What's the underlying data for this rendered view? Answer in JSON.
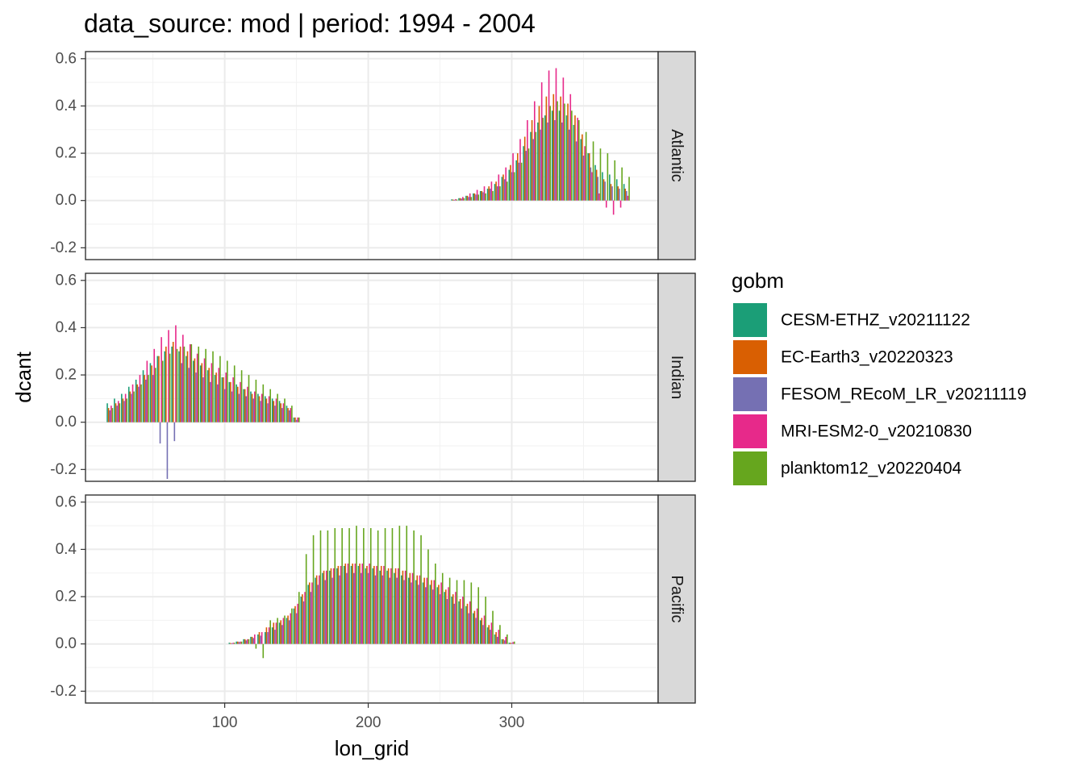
{
  "chart_data": {
    "type": "bar",
    "title": "data_source: mod | period: 1994 - 2004",
    "xlabel": "lon_grid",
    "ylabel": "dcant",
    "xlim": [
      3,
      402
    ],
    "ylim": [
      -0.25,
      0.63
    ],
    "x_ticks": [
      100,
      200,
      300
    ],
    "x_tick_labels": [
      "100",
      "200",
      "300"
    ],
    "y_ticks": [
      -0.2,
      0.0,
      0.2,
      0.4,
      0.6
    ],
    "y_tick_labels": [
      "-0.2",
      "0.0",
      "0.2",
      "0.4",
      "0.6"
    ],
    "grid": true,
    "legend_position": "right",
    "legend": {
      "title": "gobm",
      "entries": [
        {
          "label": "CESM-ETHZ_v20211122",
          "color": "#1b9e77"
        },
        {
          "label": "EC-Earth3_v20220323",
          "color": "#d95f02"
        },
        {
          "label": "FESOM_REcoM_LR_v20211119",
          "color": "#7570b3"
        },
        {
          "label": "MRI-ESM2-0_v20210830",
          "color": "#e7298a"
        },
        {
          "label": "planktom12_v20220404",
          "color": "#66a61e"
        }
      ]
    },
    "panels": [
      {
        "label": "Atlantic",
        "x": [
          260,
          265,
          270,
          275,
          280,
          285,
          290,
          295,
          300,
          305,
          310,
          315,
          320,
          325,
          330,
          335,
          340,
          345,
          350,
          355,
          360,
          365,
          370,
          375,
          380
        ],
        "series": [
          {
            "name": "CESM-ETHZ_v20211122",
            "values": [
              0.005,
              0.01,
              0.02,
              0.03,
              0.04,
              0.05,
              0.07,
              0.1,
              0.13,
              0.17,
              0.23,
              0.29,
              0.33,
              0.36,
              0.38,
              0.38,
              0.36,
              0.32,
              0.26,
              0.2,
              0.15,
              0.12,
              0.11,
              0.09,
              0.07
            ]
          },
          {
            "name": "EC-Earth3_v20220323",
            "values": [
              0.004,
              0.01,
              0.02,
              0.03,
              0.04,
              0.06,
              0.08,
              0.11,
              0.15,
              0.2,
              0.27,
              0.34,
              0.4,
              0.44,
              0.45,
              0.44,
              0.41,
              0.36,
              0.28,
              0.2,
              0.13,
              0.09,
              0.07,
              0.06,
              0.05
            ]
          },
          {
            "name": "FESOM_REcoM_LR_v20211119",
            "values": [
              0.003,
              0.008,
              0.015,
              0.025,
              0.035,
              0.05,
              0.06,
              0.09,
              0.12,
              0.16,
              0.21,
              0.26,
              0.3,
              0.33,
              0.34,
              0.33,
              0.3,
              0.25,
              0.19,
              0.14,
              0.1,
              0.08,
              0.06,
              0.05,
              0.04
            ]
          },
          {
            "name": "MRI-ESM2-0_v20210830",
            "values": [
              0.006,
              0.015,
              0.03,
              0.045,
              0.06,
              0.08,
              0.11,
              0.14,
              0.2,
              0.26,
              0.34,
              0.42,
              0.5,
              0.55,
              0.56,
              0.52,
              0.45,
              0.35,
              0.23,
              0.12,
              0.03,
              -0.03,
              -0.06,
              -0.03,
              0.02
            ]
          },
          {
            "name": "planktom12_v20220404",
            "values": [
              0.004,
              0.01,
              0.015,
              0.025,
              0.03,
              0.04,
              0.06,
              0.08,
              0.12,
              0.16,
              0.22,
              0.29,
              0.35,
              0.4,
              0.42,
              0.41,
              0.38,
              0.34,
              0.29,
              0.25,
              0.22,
              0.2,
              0.17,
              0.14,
              0.1
            ]
          }
        ]
      },
      {
        "label": "Indian",
        "x": [
          20,
          25,
          30,
          35,
          40,
          45,
          50,
          55,
          60,
          65,
          70,
          75,
          80,
          85,
          90,
          95,
          100,
          105,
          110,
          115,
          120,
          125,
          130,
          135,
          140,
          145,
          150
        ],
        "series": [
          {
            "name": "CESM-ETHZ_v20211122",
            "values": [
              0.08,
              0.1,
              0.12,
              0.15,
              0.18,
              0.22,
              0.25,
              0.28,
              0.3,
              0.32,
              0.3,
              0.28,
              0.26,
              0.24,
              0.22,
              0.2,
              0.19,
              0.17,
              0.16,
              0.14,
              0.13,
              0.12,
              0.11,
              0.1,
              0.09,
              0.07,
              0.02
            ]
          },
          {
            "name": "EC-Earth3_v20220323",
            "values": [
              0.06,
              0.08,
              0.1,
              0.13,
              0.16,
              0.2,
              0.24,
              0.28,
              0.32,
              0.34,
              0.32,
              0.3,
              0.27,
              0.25,
              0.23,
              0.21,
              0.19,
              0.17,
              0.15,
              0.14,
              0.12,
              0.11,
              0.1,
              0.09,
              0.08,
              0.06,
              0.02
            ]
          },
          {
            "name": "FESOM_REcoM_LR_v20211119",
            "values": [
              0.05,
              0.07,
              0.09,
              0.12,
              0.15,
              0.18,
              0.2,
              -0.09,
              -0.24,
              -0.08,
              0.25,
              0.23,
              0.21,
              0.19,
              0.17,
              0.16,
              0.14,
              0.13,
              0.12,
              0.11,
              0.1,
              0.09,
              0.08,
              0.07,
              0.06,
              0.05,
              0.01
            ]
          },
          {
            "name": "MRI-ESM2-0_v20210830",
            "values": [
              0.07,
              0.09,
              0.12,
              0.16,
              0.2,
              0.26,
              0.31,
              0.36,
              0.39,
              0.41,
              0.37,
              0.33,
              0.29,
              0.27,
              0.25,
              0.23,
              0.21,
              0.19,
              0.17,
              0.15,
              0.13,
              0.12,
              0.11,
              0.1,
              0.08,
              0.06,
              0.02
            ]
          },
          {
            "name": "planktom12_v20220404",
            "values": [
              0.06,
              0.08,
              0.1,
              0.13,
              0.16,
              0.2,
              0.23,
              0.26,
              0.29,
              0.31,
              0.32,
              0.33,
              0.32,
              0.31,
              0.3,
              0.28,
              0.26,
              0.24,
              0.22,
              0.2,
              0.18,
              0.16,
              0.14,
              0.12,
              0.1,
              0.07,
              0.02
            ]
          }
        ]
      },
      {
        "label": "Pacific",
        "x": [
          105,
          110,
          115,
          120,
          125,
          130,
          135,
          140,
          145,
          150,
          155,
          160,
          165,
          170,
          175,
          180,
          185,
          190,
          195,
          200,
          205,
          210,
          215,
          220,
          225,
          230,
          235,
          240,
          245,
          250,
          255,
          260,
          265,
          270,
          275,
          280,
          285,
          290,
          295,
          300
        ],
        "series": [
          {
            "name": "CESM-ETHZ_v20211122",
            "values": [
              0.005,
              0.01,
              0.02,
              0.03,
              0.04,
              0.05,
              0.07,
              0.09,
              0.11,
              0.15,
              0.2,
              0.25,
              0.28,
              0.3,
              0.31,
              0.32,
              0.33,
              0.33,
              0.33,
              0.32,
              0.32,
              0.31,
              0.31,
              0.3,
              0.29,
              0.28,
              0.27,
              0.26,
              0.25,
              0.24,
              0.22,
              0.2,
              0.18,
              0.16,
              0.13,
              0.1,
              0.07,
              0.04,
              0.02,
              0.005
            ]
          },
          {
            "name": "EC-Earth3_v20220323",
            "values": [
              0.004,
              0.01,
              0.02,
              0.03,
              0.05,
              0.07,
              0.09,
              0.1,
              0.12,
              0.16,
              0.21,
              0.26,
              0.29,
              0.31,
              0.32,
              0.33,
              0.34,
              0.34,
              0.34,
              0.33,
              0.33,
              0.33,
              0.32,
              0.32,
              0.31,
              0.3,
              0.29,
              0.28,
              0.27,
              0.25,
              0.23,
              0.21,
              0.19,
              0.17,
              0.14,
              0.11,
              0.08,
              0.05,
              0.02,
              0.005
            ]
          },
          {
            "name": "FESOM_REcoM_LR_v20211119",
            "values": [
              0.003,
              0.008,
              0.015,
              0.025,
              0.035,
              0.05,
              0.06,
              0.08,
              0.1,
              0.13,
              0.18,
              0.22,
              0.25,
              0.27,
              0.28,
              0.29,
              0.3,
              0.3,
              0.3,
              0.3,
              0.29,
              0.29,
              0.28,
              0.28,
              0.27,
              0.26,
              0.25,
              0.24,
              0.23,
              0.21,
              0.19,
              0.17,
              0.15,
              0.13,
              0.11,
              0.08,
              0.06,
              0.03,
              0.015,
              0.004
            ]
          },
          {
            "name": "MRI-ESM2-0_v20210830",
            "values": [
              0.005,
              0.01,
              0.02,
              0.04,
              0.05,
              0.07,
              0.09,
              0.11,
              0.13,
              0.17,
              0.22,
              0.26,
              0.29,
              0.31,
              0.32,
              0.33,
              0.34,
              0.34,
              0.34,
              0.34,
              0.33,
              0.33,
              0.32,
              0.32,
              0.31,
              0.3,
              0.29,
              0.28,
              0.27,
              0.26,
              0.24,
              0.22,
              0.2,
              0.18,
              0.15,
              0.12,
              0.09,
              0.06,
              0.03,
              0.008
            ]
          },
          {
            "name": "planktom12_v20220404",
            "values": [
              0.005,
              0.01,
              0.02,
              -0.02,
              -0.06,
              0.1,
              0.11,
              0.12,
              0.15,
              0.22,
              0.38,
              0.46,
              0.48,
              0.48,
              0.49,
              0.49,
              0.49,
              0.5,
              0.49,
              0.49,
              0.48,
              0.49,
              0.49,
              0.5,
              0.5,
              0.48,
              0.46,
              0.4,
              0.34,
              0.3,
              0.28,
              0.27,
              0.27,
              0.26,
              0.24,
              0.2,
              0.14,
              0.08,
              0.04,
              0.01
            ]
          }
        ]
      }
    ]
  }
}
